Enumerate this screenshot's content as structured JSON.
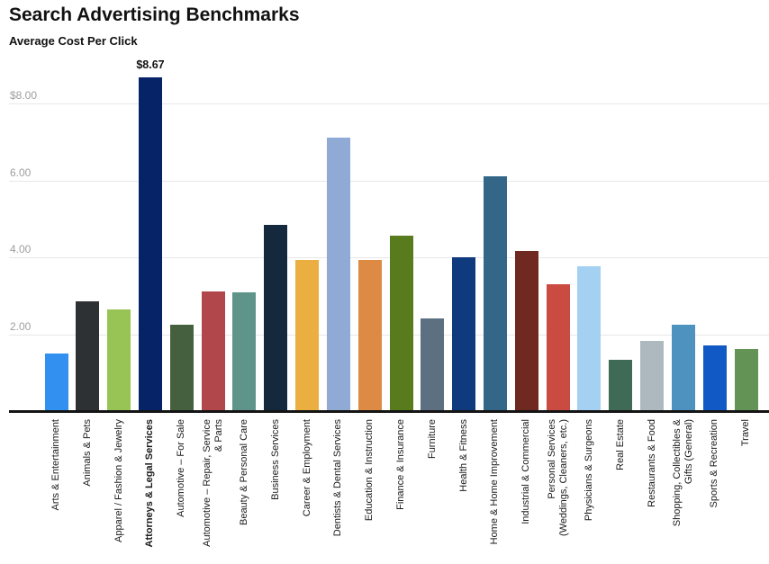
{
  "chart_data": {
    "type": "bar",
    "title": "Search Advertising Benchmarks",
    "subtitle": "Average Cost Per Click",
    "xlabel": "",
    "ylabel": "Average Cost Per Click",
    "legend": "none",
    "grid": "horizontal",
    "ylim": [
      0,
      8.9
    ],
    "y_axis": {
      "tick_labels": [
        "$8.00",
        "6.00",
        "4.00",
        "2.00"
      ],
      "tick_values": [
        8,
        6,
        4,
        2
      ]
    },
    "annotation": {
      "index": 3,
      "text": "$8.67"
    },
    "emphasized_index": 3,
    "categories": [
      "Arts & Entertainment",
      "Animals & Pets",
      "Apparel / Fashion & Jewelry",
      "Attorneys & Legal Services",
      "Automotive – For Sale",
      "Automotive – Repair, Service & Parts",
      "Beauty & Personal Care",
      "Business Services",
      "Career & Employment",
      "Dentists & Dental Services",
      "Education & Instruction",
      "Finance & Insurance",
      "Furniture",
      "Health & Fitness",
      "Home & Home Improvement",
      "Industrial & Commercial",
      "Personal Services (Weddings, Cleaners, etc.)",
      "Physicians & Surgeons",
      "Real Estate",
      "Restaurants & Food",
      "Shopping, Collectibles & Gifts (General)",
      "Sports & Recreation",
      "Travel"
    ],
    "label_line_breaks": {
      "5": [
        "Automotive – Repair, Service",
        "& Parts"
      ],
      "16": [
        "Personal Services",
        "(Weddings, Cleaners, etc.)"
      ],
      "20": [
        "Shopping, Collectibles &",
        "Gifts (General)"
      ]
    },
    "values": [
      1.51,
      2.87,
      2.65,
      8.67,
      2.26,
      3.12,
      3.1,
      4.85,
      3.95,
      7.11,
      3.93,
      4.57,
      2.42,
      4.0,
      6.11,
      4.17,
      3.31,
      3.78,
      1.35,
      1.85,
      2.27,
      1.73,
      1.64
    ],
    "bar_colors": [
      "#3290F0",
      "#2E3133",
      "#98C455",
      "#062368",
      "#44603E",
      "#B1474A",
      "#5E9489",
      "#14293E",
      "#EBAF41",
      "#8FAAD4",
      "#DC8A44",
      "#587C1D",
      "#5D7082",
      "#0F3B7E",
      "#336687",
      "#6F2921",
      "#CA4B42",
      "#A4D0F1",
      "#3F6A55",
      "#ADB9BF",
      "#4E92BF",
      "#115AC6",
      "#649455"
    ],
    "colors_meta": {
      "background": "#FFFFFF",
      "gridline": "#E7E7E7",
      "axis_line": "#141414",
      "tick_text": "#9E9E9E",
      "label_text": "#1A1A1A"
    }
  }
}
